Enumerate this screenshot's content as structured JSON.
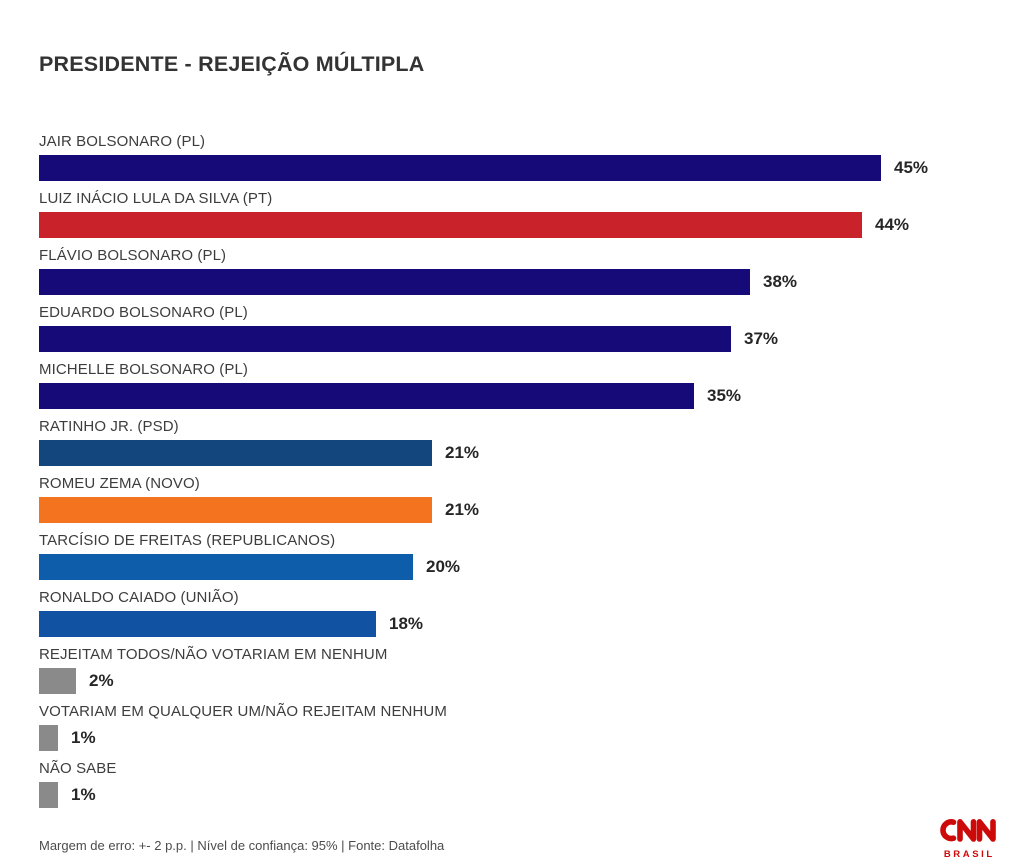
{
  "title": "PRESIDENTE - REJEIÇÃO MÚLTIPLA",
  "footer": {
    "text": "Margem de erro: +- 2 p.p. | Nível de confiança: 95% | Fonte: Datafolha"
  },
  "logo": {
    "brand": "CNN",
    "region": "BRASIL",
    "color": "#cc0a0a"
  },
  "colors": {
    "background": "#ffffff",
    "title_text": "#333333",
    "label_text": "#3d3d3d",
    "value_text": "#262626",
    "footer_text": "#4c4c4c",
    "navy": "#150a78",
    "red": "#c9222a",
    "steel_blue": "#14467e",
    "orange": "#f4731f",
    "bright_blue": "#0e5dab",
    "mid_blue": "#1252a3",
    "gray": "#8a8a8a"
  },
  "chart_data": {
    "type": "bar",
    "orientation": "horizontal",
    "title": "PRESIDENTE - REJEIÇÃO MÚLTIPLA",
    "unit": "%",
    "xlim": [
      0,
      50
    ],
    "grid": false,
    "legend": false,
    "categories": [
      "JAIR BOLSONARO (PL)",
      "LUIZ INÁCIO LULA DA SILVA (PT)",
      "FLÁVIO BOLSONARO (PL)",
      "EDUARDO BOLSONARO (PL)",
      "MICHELLE BOLSONARO (PL)",
      "RATINHO JR. (PSD)",
      "ROMEU ZEMA (NOVO)",
      "TARCÍSIO DE FREITAS (REPUBLICANOS)",
      "RONALDO CAIADO (UNIÃO)",
      "REJEITAM TODOS/NÃO VOTARIAM EM NENHUM",
      "VOTARIAM EM QUALQUER UM/NÃO REJEITAM NENHUM",
      "NÃO SABE"
    ],
    "values": [
      45,
      44,
      38,
      37,
      35,
      21,
      21,
      20,
      18,
      2,
      1,
      1
    ],
    "value_labels": [
      "45%",
      "44%",
      "38%",
      "37%",
      "35%",
      "21%",
      "21%",
      "20%",
      "18%",
      "2%",
      "1%",
      "1%"
    ],
    "bar_colors": [
      "#150a78",
      "#c9222a",
      "#150a78",
      "#150a78",
      "#150a78",
      "#14467e",
      "#f4731f",
      "#0e5dab",
      "#1252a3",
      "#8a8a8a",
      "#8a8a8a",
      "#8a8a8a"
    ]
  }
}
